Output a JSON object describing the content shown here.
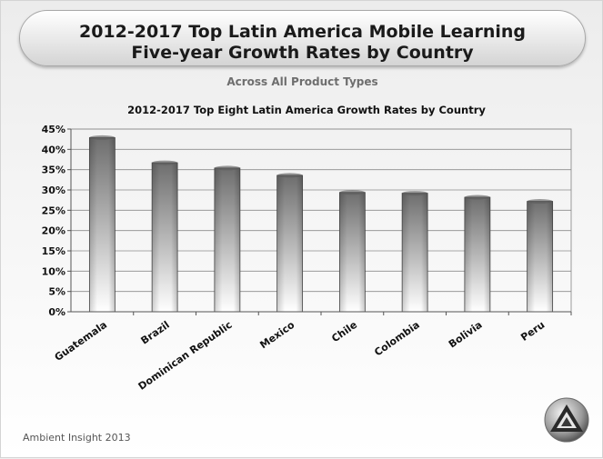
{
  "slide": {
    "title_line1": "2012-2017 Top Latin America Mobile Learning",
    "title_line2": "Five-year Growth Rates by Country",
    "subtitle": "Across All Product Types",
    "footer": "Ambient Insight 2013"
  },
  "chart_data": {
    "type": "bar",
    "title": "2012-2017 Top Eight Latin America Growth Rates by Country",
    "categories": [
      "Guatemala",
      "Brazil",
      "Dominican Republic",
      "Mexico",
      "Chile",
      "Colombia",
      "Bolivia",
      "Peru"
    ],
    "values": [
      42.9,
      36.7,
      35.4,
      33.6,
      29.4,
      29.2,
      28.2,
      27.2
    ],
    "value_unit": "%",
    "ylim": [
      0,
      45
    ],
    "yticks": [
      "0%",
      "5%",
      "10%",
      "15%",
      "20%",
      "25%",
      "30%",
      "35%",
      "40%",
      "45%"
    ],
    "grid": true,
    "legend": "none"
  }
}
